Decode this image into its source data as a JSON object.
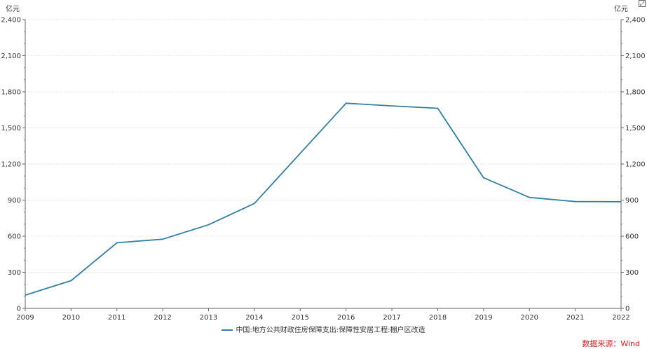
{
  "chart_data": {
    "type": "line",
    "unit_left": "亿元",
    "unit_right": "亿元",
    "x": [
      "2009",
      "2010",
      "2011",
      "2012",
      "2013",
      "2014",
      "2015",
      "2016",
      "2017",
      "2018",
      "2019",
      "2020",
      "2021",
      "2022"
    ],
    "series": [
      {
        "name": "中国:地方公共财政住房保障支出:保障性安居工程:棚户区改造",
        "color": "#2f7fa8",
        "values": [
          110,
          230,
          545,
          575,
          695,
          872,
          null,
          1705,
          1683,
          1663,
          1086,
          922,
          888,
          886
        ]
      }
    ],
    "ylim": [
      0,
      2400
    ],
    "yticks": [
      "0",
      "300",
      "600",
      "900",
      "1,200",
      "1,500",
      "1,800",
      "2,100",
      "2,400"
    ],
    "ytick_values": [
      0,
      300,
      600,
      900,
      1200,
      1500,
      1800,
      2100,
      2400
    ],
    "grid": true,
    "legend_position": "bottom-center"
  },
  "source_text": "数据来源：Wind",
  "corner_icon": "expand-icon"
}
